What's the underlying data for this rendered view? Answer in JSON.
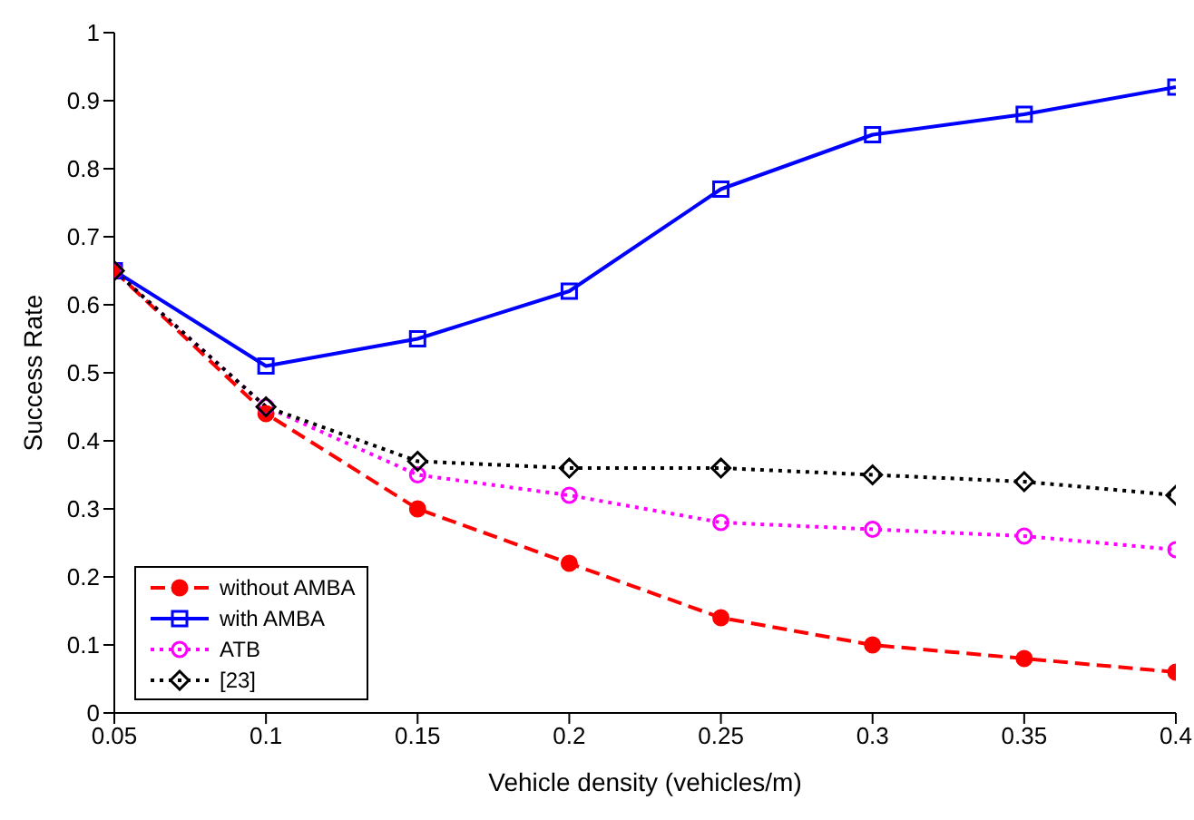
{
  "chart_data": {
    "type": "line",
    "xlabel": "Vehicle density (vehicles/m)",
    "ylabel": "Success Rate",
    "x": [
      0.05,
      0.1,
      0.15,
      0.2,
      0.25,
      0.3,
      0.35,
      0.4
    ],
    "series": [
      {
        "name": "without AMBA",
        "color": "#ff0000",
        "marker": "circle",
        "line_style": "dashed",
        "values": [
          0.65,
          0.44,
          0.3,
          0.22,
          0.14,
          0.1,
          0.08,
          0.06
        ]
      },
      {
        "name": "with AMBA",
        "color": "#0000ff",
        "marker": "square",
        "line_style": "solid",
        "values": [
          0.65,
          0.51,
          0.55,
          0.62,
          0.77,
          0.85,
          0.88,
          0.92
        ]
      },
      {
        "name": "ATB",
        "color": "#ff00ff",
        "marker": "circle",
        "line_style": "dotted",
        "values": [
          0.65,
          0.45,
          0.35,
          0.32,
          0.28,
          0.27,
          0.26,
          0.24
        ]
      },
      {
        "name": "[23]",
        "color": "#000000",
        "marker": "diamond",
        "line_style": "dotted",
        "values": [
          0.65,
          0.45,
          0.37,
          0.36,
          0.36,
          0.35,
          0.34,
          0.32
        ]
      }
    ],
    "xlim": [
      0.05,
      0.4
    ],
    "xticks": [
      0.05,
      0.1,
      0.15,
      0.2,
      0.25,
      0.3,
      0.35,
      0.4
    ],
    "ylim": [
      0,
      1
    ],
    "yticks": [
      0,
      0.1,
      0.2,
      0.3,
      0.4,
      0.5,
      0.6,
      0.7,
      0.8,
      0.9,
      1
    ],
    "grid": false,
    "legend": "bottom left"
  }
}
